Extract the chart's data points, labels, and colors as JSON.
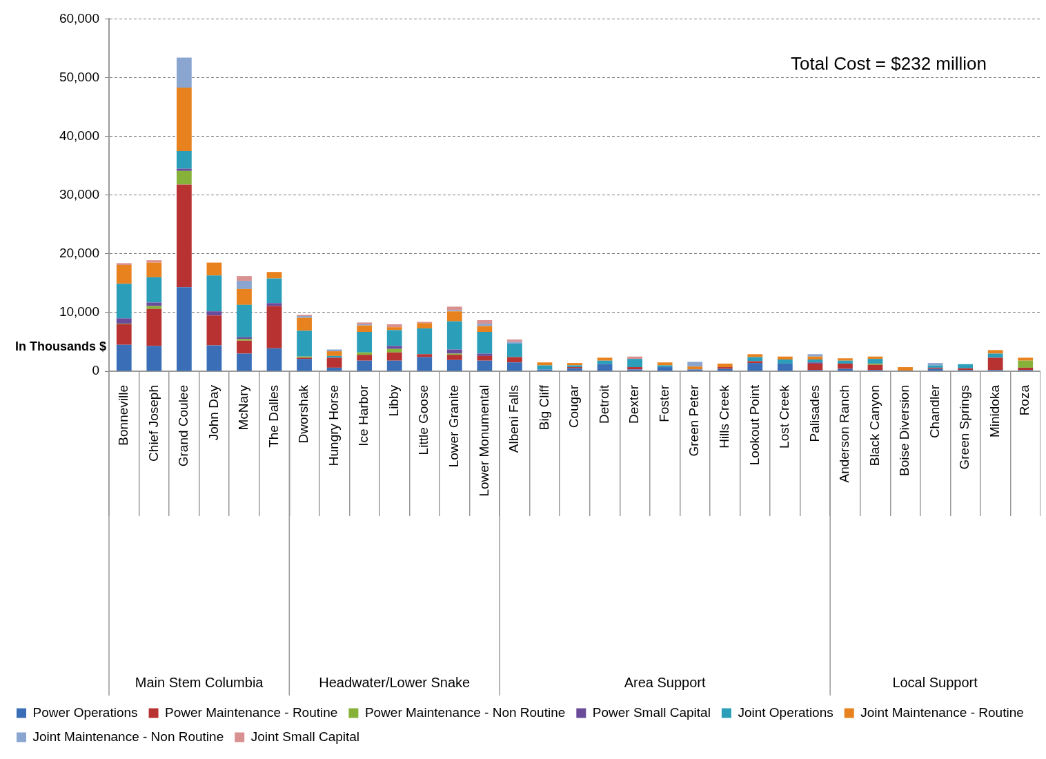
{
  "chart_data": {
    "type": "bar",
    "stacked": true,
    "ylabel": "In Thousands $",
    "categories": [
      "Bonneville",
      "Chief Joseph",
      "Grand Coulee",
      "John Day",
      "McNary",
      "The Dalles",
      "Dworshak",
      "Hungry Horse",
      "Ice Harbor",
      "Libby",
      "Little Goose",
      "Lower Granite",
      "Lower Monumental",
      "Albeni Falls",
      "Big Cliff",
      "Cougar",
      "Detroit",
      "Dexter",
      "Foster",
      "Green Peter",
      "Hills Creek",
      "Lookout Point",
      "Lost Creek",
      "Palisades",
      "Anderson Ranch",
      "Black Canyon",
      "Boise Diversion",
      "Chandler",
      "Green Springs",
      "Minidoka",
      "Roza"
    ],
    "series": [
      {
        "name": "Power Operations",
        "color": "#3a6fb8",
        "values": [
          4500,
          4300,
          14300,
          4400,
          3000,
          3900,
          2100,
          600,
          1800,
          1800,
          2400,
          1900,
          1800,
          1500,
          300,
          500,
          1200,
          300,
          700,
          300,
          400,
          1400,
          1300,
          200,
          400,
          200,
          100,
          400,
          200,
          200,
          200
        ]
      },
      {
        "name": "Power Maintenance - Routine",
        "color": "#b83232",
        "values": [
          3500,
          6300,
          17500,
          5100,
          2200,
          7200,
          200,
          1700,
          1000,
          1400,
          500,
          900,
          800,
          900,
          0,
          200,
          0,
          400,
          0,
          0,
          300,
          300,
          0,
          1100,
          900,
          900,
          0,
          200,
          300,
          2100,
          400
        ]
      },
      {
        "name": "Power Maintenance - Non Routine",
        "color": "#86b23a",
        "values": [
          100,
          500,
          2300,
          0,
          300,
          0,
          200,
          0,
          400,
          600,
          0,
          200,
          0,
          0,
          0,
          0,
          0,
          0,
          0,
          0,
          0,
          0,
          0,
          0,
          0,
          200,
          0,
          0,
          0,
          0,
          1200
        ]
      },
      {
        "name": "Power Small Capital",
        "color": "#6a4b9a",
        "values": [
          900,
          600,
          400,
          700,
          300,
          500,
          0,
          0,
          0,
          500,
          0,
          700,
          400,
          0,
          0,
          0,
          0,
          0,
          0,
          0,
          0,
          0,
          0,
          200,
          0,
          0,
          0,
          0,
          0,
          0,
          0
        ]
      },
      {
        "name": "Joint Operations",
        "color": "#2b9fba",
        "values": [
          5900,
          4300,
          3000,
          6100,
          5500,
          4200,
          4400,
          300,
          3500,
          2700,
          4400,
          4800,
          3700,
          2300,
          700,
          300,
          600,
          1400,
          300,
          0,
          0,
          700,
          700,
          500,
          500,
          800,
          0,
          400,
          700,
          700,
          0
        ]
      },
      {
        "name": "Joint Maintenance - Routine",
        "color": "#e8821e",
        "values": [
          3200,
          2500,
          10800,
          2200,
          2700,
          1100,
          2200,
          800,
          1100,
          500,
          900,
          1700,
          1000,
          0,
          500,
          400,
          500,
          0,
          500,
          500,
          600,
          500,
          500,
          500,
          400,
          400,
          600,
          0,
          0,
          600,
          500
        ]
      },
      {
        "name": "Joint Maintenance - Non Routine",
        "color": "#8aa5d0",
        "values": [
          0,
          0,
          5100,
          0,
          1400,
          0,
          300,
          300,
          200,
          0,
          0,
          200,
          400,
          300,
          0,
          0,
          0,
          0,
          0,
          800,
          0,
          0,
          0,
          400,
          0,
          0,
          0,
          400,
          0,
          0,
          0
        ]
      },
      {
        "name": "Joint Small Capital",
        "color": "#d99090",
        "values": [
          300,
          400,
          0,
          0,
          800,
          0,
          200,
          0,
          300,
          500,
          200,
          600,
          600,
          400,
          0,
          0,
          0,
          400,
          0,
          0,
          0,
          0,
          0,
          0,
          0,
          0,
          0,
          0,
          0,
          0,
          0
        ]
      }
    ],
    "ylim": [
      0,
      60000
    ],
    "yticks": [
      0,
      {
        "value": 10000,
        "label": "10,000"
      },
      {
        "value": 20000,
        "label": "20,000"
      },
      {
        "value": 30000,
        "label": "30,000"
      },
      {
        "value": 40000,
        "label": "40,000"
      },
      {
        "value": 50000,
        "label": "50,000"
      },
      {
        "value": 60000,
        "label": "60,000"
      }
    ],
    "grid": "y",
    "legend": "bottom",
    "annotations": [
      "Total Cost = $232 million",
      "Main Stem Columbia",
      "Headwater/Lower Snake",
      "Area Support",
      "Local Support"
    ]
  }
}
